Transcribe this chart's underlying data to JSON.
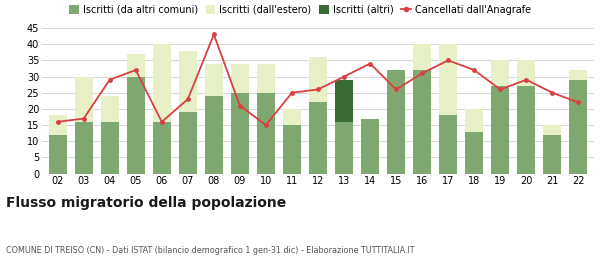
{
  "years": [
    "02",
    "03",
    "04",
    "05",
    "06",
    "07",
    "08",
    "09",
    "10",
    "11",
    "12",
    "13",
    "14",
    "15",
    "16",
    "17",
    "18",
    "19",
    "20",
    "21",
    "22"
  ],
  "iscritti_comuni": [
    12,
    16,
    16,
    30,
    16,
    19,
    24,
    25,
    25,
    15,
    22,
    16,
    17,
    32,
    32,
    18,
    13,
    27,
    27,
    12,
    29
  ],
  "iscritti_estero": [
    6,
    14,
    8,
    7,
    24,
    19,
    10,
    9,
    9,
    5,
    14,
    1,
    0,
    0,
    8,
    22,
    7,
    8,
    8,
    3,
    3
  ],
  "iscritti_altri": [
    0,
    0,
    0,
    0,
    0,
    0,
    0,
    0,
    0,
    0,
    0,
    13,
    0,
    0,
    0,
    0,
    0,
    0,
    0,
    0,
    0
  ],
  "cancellati": [
    16,
    17,
    29,
    32,
    16,
    23,
    43,
    21,
    15,
    25,
    26,
    30,
    34,
    26,
    31,
    35,
    32,
    26,
    29,
    25,
    22
  ],
  "color_comuni": "#7fa870",
  "color_estero": "#e8f0c8",
  "color_altri": "#3a6b35",
  "color_cancellati": "#d94040",
  "ylim": [
    0,
    45
  ],
  "yticks": [
    0,
    5,
    10,
    15,
    20,
    25,
    30,
    35,
    40,
    45
  ],
  "title": "Flusso migratorio della popolazione",
  "subtitle": "COMUNE DI TREISO (CN) - Dati ISTAT (bilancio demografico 1 gen-31 dic) - Elaborazione TUTTITALIA.IT",
  "legend_labels": [
    "Iscritti (da altri comuni)",
    "Iscritti (dall'estero)",
    "Iscritti (altri)",
    "Cancellati dall'Anagrafe"
  ],
  "bg_color": "#ffffff",
  "grid_color": "#d0d0d0"
}
